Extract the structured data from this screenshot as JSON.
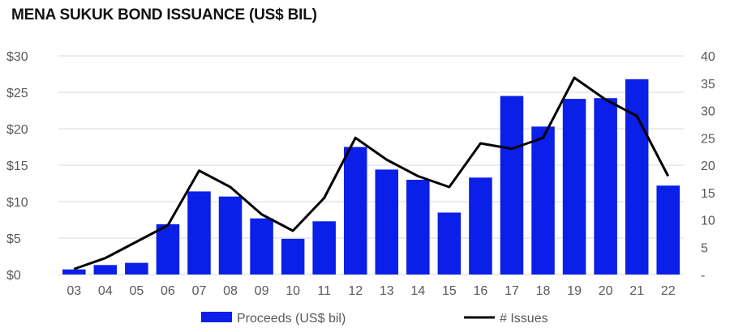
{
  "title": "MENA SUKUK BOND ISSUANCE (US$ BIL)",
  "colors": {
    "bar": "#0a1fe8",
    "line": "#000000",
    "grid": "#d9d9d9",
    "text": "#595959"
  },
  "chart_data": {
    "type": "bar",
    "title": "MENA SUKUK BOND ISSUANCE (US$ BIL)",
    "categories": [
      "03",
      "04",
      "05",
      "06",
      "07",
      "08",
      "09",
      "10",
      "11",
      "12",
      "13",
      "14",
      "15",
      "16",
      "17",
      "18",
      "19",
      "20",
      "21",
      "22"
    ],
    "series": [
      {
        "name": "Proceeds (US$ bil)",
        "type": "bar",
        "axis": "left",
        "values": [
          0.7,
          1.3,
          1.6,
          6.9,
          11.4,
          10.7,
          7.7,
          4.9,
          7.3,
          17.5,
          14.4,
          13.0,
          8.5,
          13.3,
          24.5,
          20.3,
          24.1,
          24.2,
          26.8,
          12.2
        ]
      },
      {
        "name": "# Issues",
        "type": "line",
        "axis": "right",
        "values": [
          1,
          3,
          6,
          9,
          19,
          16,
          11,
          8,
          14,
          25,
          21,
          18,
          16,
          24,
          23,
          25,
          36,
          32,
          29,
          18
        ]
      }
    ],
    "left_axis": {
      "min": 0,
      "max": 30,
      "step": 5,
      "tick_labels": [
        "$0",
        "$5",
        "$10",
        "$15",
        "$20",
        "$25",
        "$30"
      ]
    },
    "right_axis": {
      "min": 0,
      "max": 40,
      "step": 5,
      "tick_labels": [
        "-",
        "5",
        "10",
        "15",
        "20",
        "25",
        "30",
        "35",
        "40"
      ]
    },
    "grid": true,
    "legend": "bottom"
  }
}
